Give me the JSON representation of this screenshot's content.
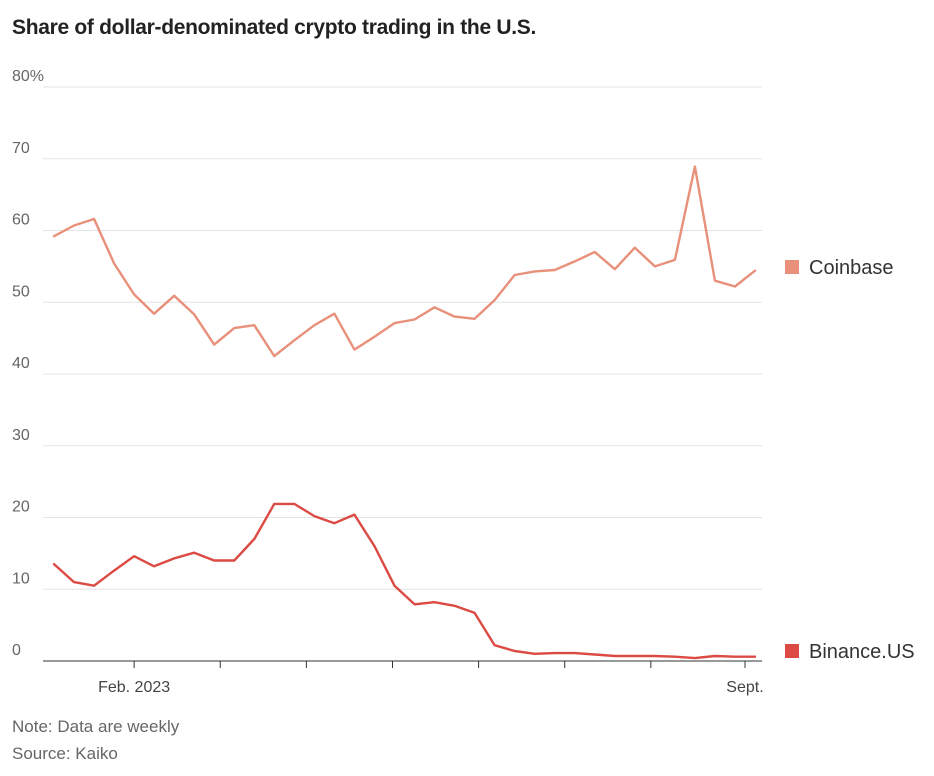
{
  "title": "Share of dollar-denominated crypto trading in the U.S.",
  "note": "Note: Data are weekly",
  "source": "Source: Kaiko",
  "chart_data": {
    "type": "line",
    "title": "Share of dollar-denominated crypto trading in the U.S.",
    "xlabel": "",
    "ylabel": "",
    "ylim": [
      0,
      80
    ],
    "yticks": [
      0,
      10,
      20,
      30,
      40,
      50,
      60,
      70,
      80
    ],
    "ytick_labels": [
      "0",
      "10",
      "20",
      "30",
      "40",
      "50",
      "60",
      "70",
      "80%"
    ],
    "xtick_labels": [
      {
        "label": "Feb. 2023",
        "index": 4
      },
      {
        "label": "Sept.",
        "index": 34.5
      }
    ],
    "grid": true,
    "legend": "right, at line ends",
    "x": [
      0,
      1,
      2,
      3,
      4,
      5,
      6,
      7,
      8,
      9,
      10,
      11,
      12,
      13,
      14,
      15,
      16,
      17,
      18,
      19,
      20,
      21,
      22,
      23,
      24,
      25,
      26,
      27,
      28,
      29,
      30,
      31,
      32,
      33,
      34,
      35
    ],
    "series": [
      {
        "name": "Coinbase",
        "color": "#e8907a",
        "values": [
          59.2,
          60.7,
          61.6,
          55.4,
          51.1,
          48.4,
          50.9,
          48.3,
          44.1,
          46.4,
          46.8,
          42.5,
          44.7,
          46.8,
          48.4,
          43.4,
          45.2,
          47.1,
          47.6,
          49.3,
          48.0,
          47.7,
          50.3,
          53.8,
          54.3,
          54.5,
          55.7,
          57.0,
          54.6,
          57.6,
          55.0,
          55.9,
          68.9,
          53.0,
          52.2,
          54.4
        ]
      },
      {
        "name": "Binance.US",
        "color": "#dc4a44",
        "values": [
          13.5,
          11.0,
          10.5,
          12.6,
          14.6,
          13.2,
          14.3,
          15.1,
          14.0,
          14.0,
          17.0,
          21.9,
          21.9,
          20.2,
          19.2,
          20.4,
          16.0,
          10.5,
          7.9,
          8.2,
          7.7,
          6.7,
          2.2,
          1.4,
          1.0,
          1.1,
          1.1,
          0.9,
          0.7,
          0.7,
          0.7,
          0.6,
          0.4,
          0.7,
          0.6,
          0.6
        ]
      }
    ]
  }
}
